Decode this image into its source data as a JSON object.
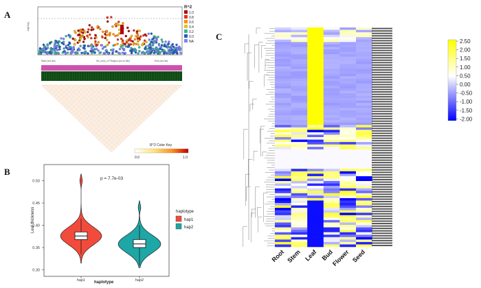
{
  "panels": {
    "a_label": "A",
    "b_label": "B",
    "c_label": "C"
  },
  "manhattan": {
    "r2_title": "R^2",
    "legend_levels": [
      "1.0",
      "0.8",
      "0.6",
      "0.4",
      "0.2",
      "0.0",
      "NA"
    ],
    "legend_colors": [
      "#b00000",
      "#e83020",
      "#ff8c00",
      "#e8c020",
      "#40b0a0",
      "#2060c0",
      "#8080ff"
    ],
    "x_left": "Start (xxx kb)",
    "x_mid": "Hb_xxxx_LP Region (xx.xx Mb)",
    "x_right": "End (xxx kb)"
  },
  "ld_key": {
    "title": "R^2 Color Key",
    "min": "0.0",
    "max": "1.0"
  },
  "violin": {
    "pvalue": "p = 7.7e-03",
    "ylabel": "Leaf thickness",
    "xlabel": "haplotype",
    "yticks": [
      "0.30",
      "0.35",
      "0.40",
      "0.45",
      "0.50"
    ],
    "groups": [
      "hap1",
      "hap2"
    ],
    "legend_title": "haplotype",
    "legend_items": [
      "hap1",
      "hap2"
    ],
    "colors": [
      "#f24b3c",
      "#1fa6a6"
    ]
  },
  "heatmap": {
    "columns": [
      "Root",
      "Stem",
      "Leaf",
      "Bud",
      "Flower",
      "Seed"
    ],
    "scale_ticks": [
      "2.50",
      "2.00",
      "1.50",
      "1.00",
      "0.50",
      "0.00",
      "-0.50",
      "-1.00",
      "-1.50",
      "-2.00"
    ],
    "scale_min": -2.0,
    "scale_max": 2.5
  },
  "chart_data": [
    {
      "type": "violin",
      "title": "p = 7.7e-03",
      "xlabel": "haplotype",
      "ylabel": "Leaf thickness",
      "categories": [
        "hap1",
        "hap2"
      ],
      "medians": [
        0.376,
        0.358
      ],
      "q1": [
        0.368,
        0.35
      ],
      "q3": [
        0.385,
        0.368
      ],
      "whisker_low": [
        0.335,
        0.31
      ],
      "whisker_high": [
        0.415,
        0.4
      ],
      "max": [
        0.515,
        0.455
      ],
      "min": [
        0.315,
        0.305
      ],
      "ylim": [
        0.29,
        0.53
      ]
    },
    {
      "type": "heatmap",
      "columns": [
        "Root",
        "Stem",
        "Leaf",
        "Bud",
        "Flower",
        "Seed"
      ],
      "color_range": [
        -2.0,
        2.5
      ]
    }
  ]
}
